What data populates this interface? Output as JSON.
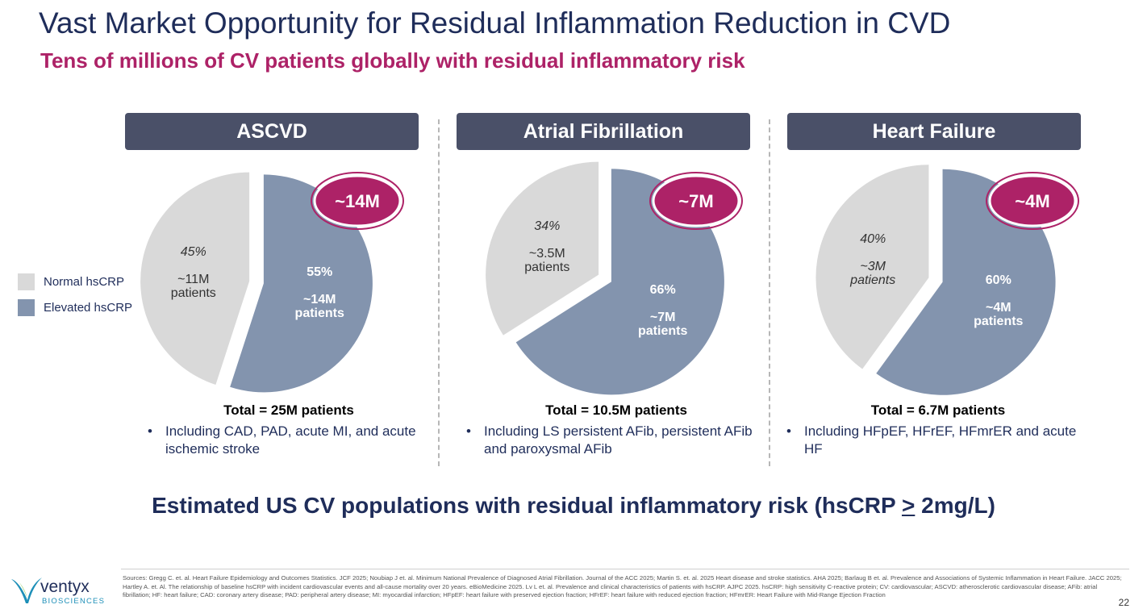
{
  "header": {
    "title": "Vast Market Opportunity for Residual Inflammation Reduction in CVD",
    "subtitle": "Tens of millions of CV patients globally with residual inflammatory risk"
  },
  "colors": {
    "title": "#1f2d5a",
    "accent": "#ad2267",
    "normal": "#d9d9d9",
    "elevated": "#8394ae",
    "header_bg": "#4a5068"
  },
  "legend": {
    "items": [
      {
        "label": "Normal hsCRP",
        "color": "#d9d9d9"
      },
      {
        "label": "Elevated hsCRP",
        "color": "#8394ae"
      }
    ]
  },
  "panels": [
    {
      "header": "ASCVD",
      "badge": "~14M",
      "total": "Total = 25M patients",
      "note": "Including CAD, PAD, acute MI, and acute ischemic stroke"
    },
    {
      "header": "Atrial Fibrillation",
      "badge": "~7M",
      "total": "Total = 10.5M patients",
      "note": "Including LS persistent AFib, persistent AFib and paroxysmal AFib"
    },
    {
      "header": "Heart Failure",
      "badge": "~4M",
      "total": "Total = 6.7M patients",
      "note": "Including HFpEF, HFrEF, HFmrER and acute HF"
    }
  ],
  "chart_data": [
    {
      "type": "pie",
      "title": "ASCVD",
      "categories": [
        "Normal hsCRP",
        "Elevated hsCRP"
      ],
      "values": [
        45,
        55
      ],
      "value_labels": [
        "45%",
        "55%"
      ],
      "patient_labels": [
        [
          "~11M",
          "patients"
        ],
        [
          "~14M",
          "patients"
        ]
      ]
    },
    {
      "type": "pie",
      "title": "Atrial Fibrillation",
      "categories": [
        "Normal hsCRP",
        "Elevated hsCRP"
      ],
      "values": [
        34,
        66
      ],
      "value_labels": [
        "34%",
        "66%"
      ],
      "patient_labels": [
        [
          "~3.5M",
          "patients"
        ],
        [
          "~7M",
          "patients"
        ]
      ]
    },
    {
      "type": "pie",
      "title": "Heart Failure",
      "categories": [
        "Normal hsCRP",
        "Elevated hsCRP"
      ],
      "values": [
        40,
        60
      ],
      "value_labels": [
        "40%",
        "60%"
      ],
      "patient_labels": [
        [
          "~3M",
          "patients"
        ],
        [
          "~4M",
          "patients"
        ]
      ]
    }
  ],
  "bottom_line": {
    "before": "Estimated US CV populations with residual inflammatory risk (hsCRP ",
    "symbol": ">",
    "after": " 2mg/L)"
  },
  "footer": {
    "sources": "Sources: Gregg C. et. al. Heart Failure Epidemiology and Outcomes Statistics. JCF 2025; Noubiap J et. al. Minimum National Prevalence of Diagnosed Atrial Fibrillation. Journal of the ACC 2025; Martin S. et. al. 2025 Heart disease and stroke statistics. AHA 2025; Barlaug B et. al. Prevalence and Associations of Systemic Inflammation in Heart Failure. JACC 2025; Hartley A. et. Al. The relationship of baseline hsCRP with incident cardiovascular events and all-cause mortality over 20 years. eBioMedicine 2025. Lv L et. al. Prevalence and clinical characteristics of patients with hsCRP. AJPC 2025. hsCRP: high sensitivity C-reactive protein; CV: cardiovascular; ASCVD: atherosclerotic cardiovascular disease; AFib: atrial fibrillation; HF: heart failure; CAD: coronary artery disease; PAD: peripheral artery disease; MI: myocardial infarction; HFpEF: heart failure with preserved ejection fraction; HFrEF: heart failure with reduced ejection fraction; HFmrER: Heart Failure with Mid-Range Ejection Fraction",
    "logo_name": "ventyx",
    "logo_sub": "BIOSCIENCES",
    "page_number": "22"
  }
}
